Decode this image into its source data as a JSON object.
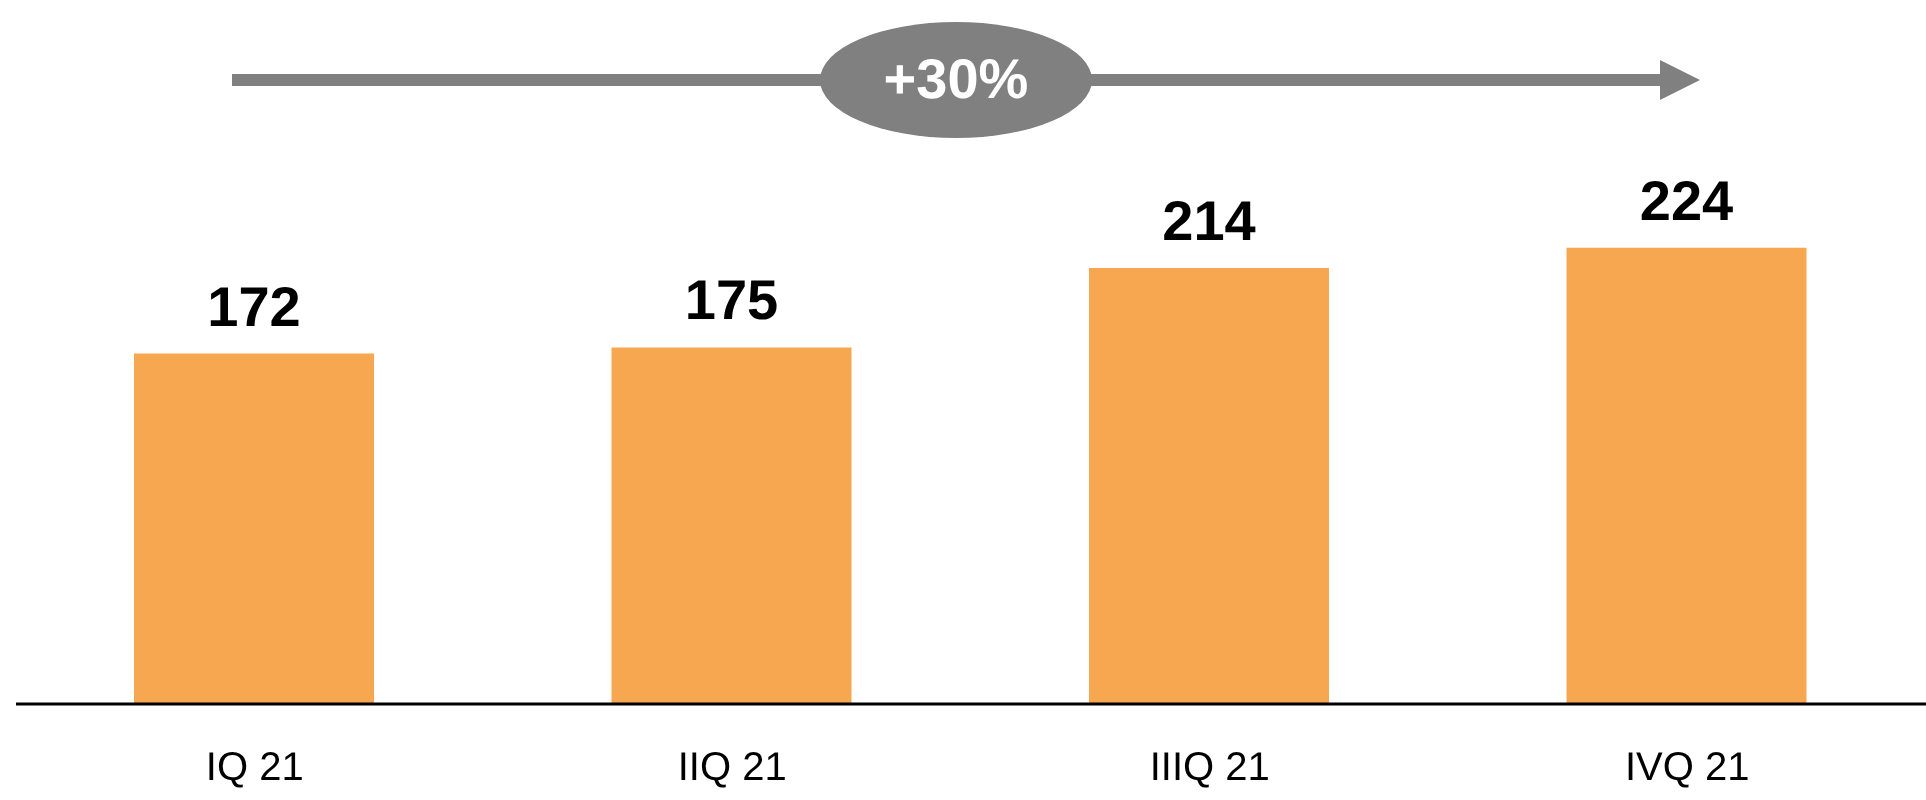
{
  "chart_data": {
    "type": "bar",
    "categories": [
      "IQ 21",
      "IIQ 21",
      "IIIQ 21",
      "IVQ 21"
    ],
    "values": [
      172,
      175,
      214,
      224
    ],
    "color": "#f6a74f",
    "data_labels": true,
    "annotations": [
      "+30%"
    ]
  }
}
